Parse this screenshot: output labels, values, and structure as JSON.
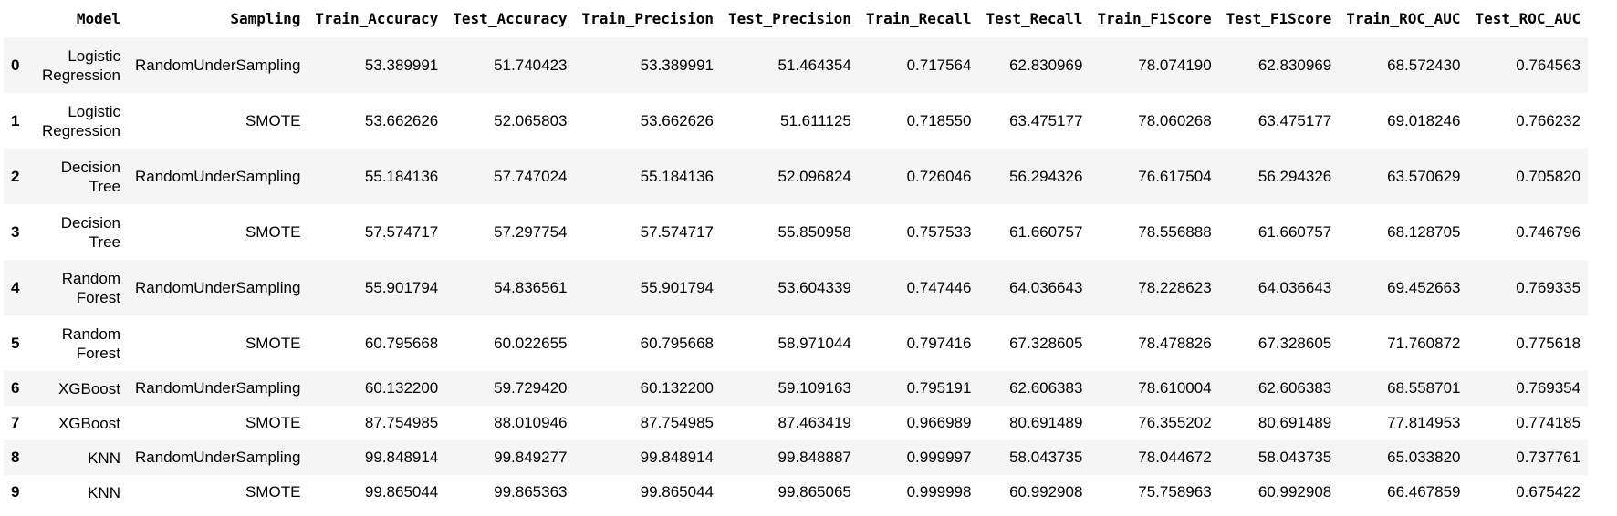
{
  "columns": [
    "",
    "Model",
    "Sampling",
    "Train_Accuracy",
    "Test_Accuracy",
    "Train_Precision",
    "Test_Precision",
    "Train_Recall",
    "Test_Recall",
    "Train_F1Score",
    "Test_F1Score",
    "Train_ROC_AUC",
    "Test_ROC_AUC"
  ],
  "rows": [
    {
      "index": "0",
      "model": "Logistic Regression",
      "sampling": "RandomUnderSampling",
      "train_accuracy": "53.389991",
      "test_accuracy": "51.740423",
      "train_precision": "53.389991",
      "test_precision": "51.464354",
      "train_recall": "0.717564",
      "test_recall": "62.830969",
      "train_f1": "78.074190",
      "test_f1": "62.830969",
      "train_roc_auc": "68.572430",
      "test_roc_auc": "0.764563"
    },
    {
      "index": "1",
      "model": "Logistic Regression",
      "sampling": "SMOTE",
      "train_accuracy": "53.662626",
      "test_accuracy": "52.065803",
      "train_precision": "53.662626",
      "test_precision": "51.611125",
      "train_recall": "0.718550",
      "test_recall": "63.475177",
      "train_f1": "78.060268",
      "test_f1": "63.475177",
      "train_roc_auc": "69.018246",
      "test_roc_auc": "0.766232"
    },
    {
      "index": "2",
      "model": "Decision Tree",
      "sampling": "RandomUnderSampling",
      "train_accuracy": "55.184136",
      "test_accuracy": "57.747024",
      "train_precision": "55.184136",
      "test_precision": "52.096824",
      "train_recall": "0.726046",
      "test_recall": "56.294326",
      "train_f1": "76.617504",
      "test_f1": "56.294326",
      "train_roc_auc": "63.570629",
      "test_roc_auc": "0.705820"
    },
    {
      "index": "3",
      "model": "Decision Tree",
      "sampling": "SMOTE",
      "train_accuracy": "57.574717",
      "test_accuracy": "57.297754",
      "train_precision": "57.574717",
      "test_precision": "55.850958",
      "train_recall": "0.757533",
      "test_recall": "61.660757",
      "train_f1": "78.556888",
      "test_f1": "61.660757",
      "train_roc_auc": "68.128705",
      "test_roc_auc": "0.746796"
    },
    {
      "index": "4",
      "model": "Random Forest",
      "sampling": "RandomUnderSampling",
      "train_accuracy": "55.901794",
      "test_accuracy": "54.836561",
      "train_precision": "55.901794",
      "test_precision": "53.604339",
      "train_recall": "0.747446",
      "test_recall": "64.036643",
      "train_f1": "78.228623",
      "test_f1": "64.036643",
      "train_roc_auc": "69.452663",
      "test_roc_auc": "0.769335"
    },
    {
      "index": "5",
      "model": "Random Forest",
      "sampling": "SMOTE",
      "train_accuracy": "60.795668",
      "test_accuracy": "60.022655",
      "train_precision": "60.795668",
      "test_precision": "58.971044",
      "train_recall": "0.797416",
      "test_recall": "67.328605",
      "train_f1": "78.478826",
      "test_f1": "67.328605",
      "train_roc_auc": "71.760872",
      "test_roc_auc": "0.775618"
    },
    {
      "index": "6",
      "model": "XGBoost",
      "sampling": "RandomUnderSampling",
      "train_accuracy": "60.132200",
      "test_accuracy": "59.729420",
      "train_precision": "60.132200",
      "test_precision": "59.109163",
      "train_recall": "0.795191",
      "test_recall": "62.606383",
      "train_f1": "78.610004",
      "test_f1": "62.606383",
      "train_roc_auc": "68.558701",
      "test_roc_auc": "0.769354"
    },
    {
      "index": "7",
      "model": "XGBoost",
      "sampling": "SMOTE",
      "train_accuracy": "87.754985",
      "test_accuracy": "88.010946",
      "train_precision": "87.754985",
      "test_precision": "87.463419",
      "train_recall": "0.966989",
      "test_recall": "80.691489",
      "train_f1": "76.355202",
      "test_f1": "80.691489",
      "train_roc_auc": "77.814953",
      "test_roc_auc": "0.774185"
    },
    {
      "index": "8",
      "model": "KNN",
      "sampling": "RandomUnderSampling",
      "train_accuracy": "99.848914",
      "test_accuracy": "99.849277",
      "train_precision": "99.848914",
      "test_precision": "99.848887",
      "train_recall": "0.999997",
      "test_recall": "58.043735",
      "train_f1": "78.044672",
      "test_f1": "58.043735",
      "train_roc_auc": "65.033820",
      "test_roc_auc": "0.737761"
    },
    {
      "index": "9",
      "model": "KNN",
      "sampling": "SMOTE",
      "train_accuracy": "99.865044",
      "test_accuracy": "99.865363",
      "train_precision": "99.865044",
      "test_precision": "99.865065",
      "train_recall": "0.999998",
      "test_recall": "60.992908",
      "train_f1": "75.758963",
      "test_f1": "60.992908",
      "train_roc_auc": "66.467859",
      "test_roc_auc": "0.675422"
    }
  ]
}
